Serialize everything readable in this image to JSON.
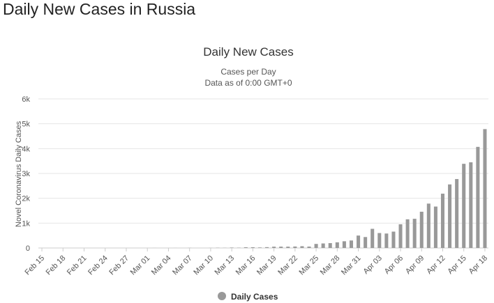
{
  "page": {
    "heading": "Daily New Cases in Russia"
  },
  "colors": {
    "bar": "#999999",
    "grid": "#e6e6e6",
    "axis_line": "#cccccc"
  },
  "chart_data": {
    "type": "bar",
    "title": "Daily New Cases",
    "subtitle_line1": "Cases per Day",
    "subtitle_line2": "Data as of 0:00 GMT+0",
    "ylabel": "Novel Coronavirus Daily Cases",
    "xlabel": "",
    "ylim": [
      0,
      6000
    ],
    "yticks": [
      0,
      1000,
      2000,
      3000,
      4000,
      5000,
      6000
    ],
    "ytick_labels": [
      "0",
      "1k",
      "2k",
      "3k",
      "4k",
      "5k",
      "6k"
    ],
    "grid": true,
    "legend_position": "bottom-center",
    "categories": [
      "Feb 15",
      "Feb 16",
      "Feb 17",
      "Feb 18",
      "Feb 19",
      "Feb 20",
      "Feb 21",
      "Feb 22",
      "Feb 23",
      "Feb 24",
      "Feb 25",
      "Feb 26",
      "Feb 27",
      "Feb 28",
      "Feb 29",
      "Mar 01",
      "Mar 02",
      "Mar 03",
      "Mar 04",
      "Mar 05",
      "Mar 06",
      "Mar 07",
      "Mar 08",
      "Mar 09",
      "Mar 10",
      "Mar 11",
      "Mar 12",
      "Mar 13",
      "Mar 14",
      "Mar 15",
      "Mar 16",
      "Mar 17",
      "Mar 18",
      "Mar 19",
      "Mar 20",
      "Mar 21",
      "Mar 22",
      "Mar 23",
      "Mar 24",
      "Mar 25",
      "Mar 26",
      "Mar 27",
      "Mar 28",
      "Mar 29",
      "Mar 30",
      "Mar 31",
      "Apr 01",
      "Apr 02",
      "Apr 03",
      "Apr 04",
      "Apr 05",
      "Apr 06",
      "Apr 07",
      "Apr 08",
      "Apr 09",
      "Apr 10",
      "Apr 11",
      "Apr 12",
      "Apr 13",
      "Apr 14",
      "Apr 15",
      "Apr 16",
      "Apr 17",
      "Apr 18"
    ],
    "x_tick_labels": [
      "Feb 15",
      "Feb 18",
      "Feb 21",
      "Feb 24",
      "Feb 27",
      "Mar 01",
      "Mar 04",
      "Mar 07",
      "Mar 10",
      "Mar 13",
      "Mar 16",
      "Mar 19",
      "Mar 22",
      "Mar 25",
      "Mar 28",
      "Mar 31",
      "Apr 03",
      "Apr 06",
      "Apr 09",
      "Apr 12",
      "Apr 15",
      "Apr 18"
    ],
    "series": [
      {
        "name": "Daily Cases",
        "values": [
          0,
          0,
          0,
          0,
          0,
          0,
          0,
          0,
          0,
          0,
          0,
          0,
          0,
          0,
          0,
          0,
          1,
          0,
          0,
          1,
          0,
          4,
          0,
          0,
          3,
          8,
          6,
          17,
          11,
          29,
          30,
          21,
          33,
          52,
          54,
          53,
          59,
          71,
          57,
          163,
          182,
          196,
          228,
          270,
          302,
          500,
          440,
          771,
          601,
          582,
          658,
          954,
          1154,
          1175,
          1459,
          1786,
          1667,
          2186,
          2558,
          2774,
          3388,
          3448,
          4070,
          4785
        ]
      }
    ]
  }
}
